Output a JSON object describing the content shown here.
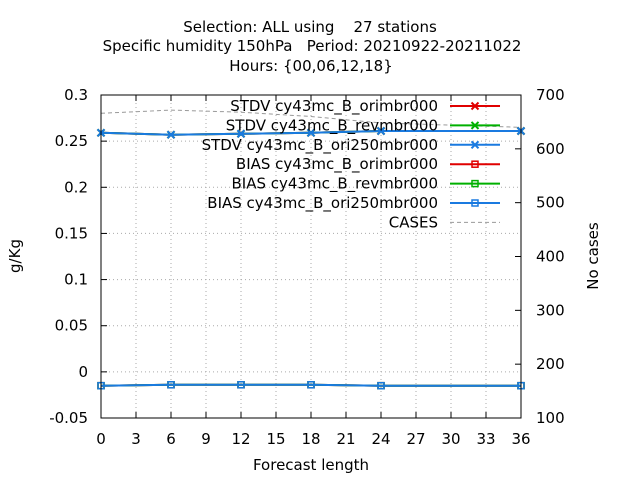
{
  "chart_data": {
    "type": "line",
    "title_lines": [
      "Selection: ALL using    27 stations",
      "Specific humidity 150hPa   Period: 20210922-20211022",
      "Hours: {00,06,12,18}"
    ],
    "xlabel": "Forecast length",
    "ylabel": "g/Kg",
    "y2label": "No cases",
    "xlim": [
      0,
      36
    ],
    "ylim": [
      -0.05,
      0.3
    ],
    "y2lim": [
      100,
      700
    ],
    "xticks": [
      "0",
      "3",
      "6",
      "9",
      "12",
      "15",
      "18",
      "21",
      "24",
      "27",
      "30",
      "33",
      "36"
    ],
    "yticks": [
      "-0.05",
      "0",
      "0.05",
      "0.1",
      "0.15",
      "0.2",
      "0.25",
      "0.3"
    ],
    "y2ticks": [
      "100",
      "200",
      "300",
      "400",
      "500",
      "600",
      "700"
    ],
    "grid": true,
    "legend_position": "top-right",
    "x": [
      0,
      6,
      12,
      18,
      24,
      36
    ],
    "series": [
      {
        "name": "STDV cy43mc_B_orimbr000",
        "axis": "y",
        "color": "#e00000",
        "marker": "x",
        "dash": false,
        "values": [
          0.259,
          0.257,
          0.258,
          0.259,
          0.261,
          0.261
        ]
      },
      {
        "name": "STDV cy43mc_B_revmbr000",
        "axis": "y",
        "color": "#00b000",
        "marker": "x",
        "dash": false,
        "values": [
          0.259,
          0.257,
          0.258,
          0.259,
          0.261,
          0.261
        ]
      },
      {
        "name": "STDV cy43mc_B_ori250mbr000",
        "axis": "y",
        "color": "#1a7ae0",
        "marker": "x",
        "dash": false,
        "values": [
          0.259,
          0.257,
          0.258,
          0.259,
          0.261,
          0.261
        ]
      },
      {
        "name": "BIAS cy43mc_B_orimbr000",
        "axis": "y",
        "color": "#e00000",
        "marker": "square",
        "dash": false,
        "values": [
          -0.015,
          -0.014,
          -0.014,
          -0.014,
          -0.015,
          -0.015
        ]
      },
      {
        "name": "BIAS cy43mc_B_revmbr000",
        "axis": "y",
        "color": "#00b000",
        "marker": "square",
        "dash": false,
        "values": [
          -0.015,
          -0.014,
          -0.014,
          -0.014,
          -0.015,
          -0.015
        ]
      },
      {
        "name": "BIAS cy43mc_B_ori250mbr000",
        "axis": "y",
        "color": "#1a7ae0",
        "marker": "square",
        "dash": false,
        "values": [
          -0.015,
          -0.014,
          -0.014,
          -0.014,
          -0.015,
          -0.015
        ]
      },
      {
        "name": "CASES",
        "axis": "y2",
        "color": "#999999",
        "marker": "none",
        "dash": true,
        "values": [
          666,
          672,
          668,
          660,
          648,
          640
        ]
      }
    ]
  }
}
